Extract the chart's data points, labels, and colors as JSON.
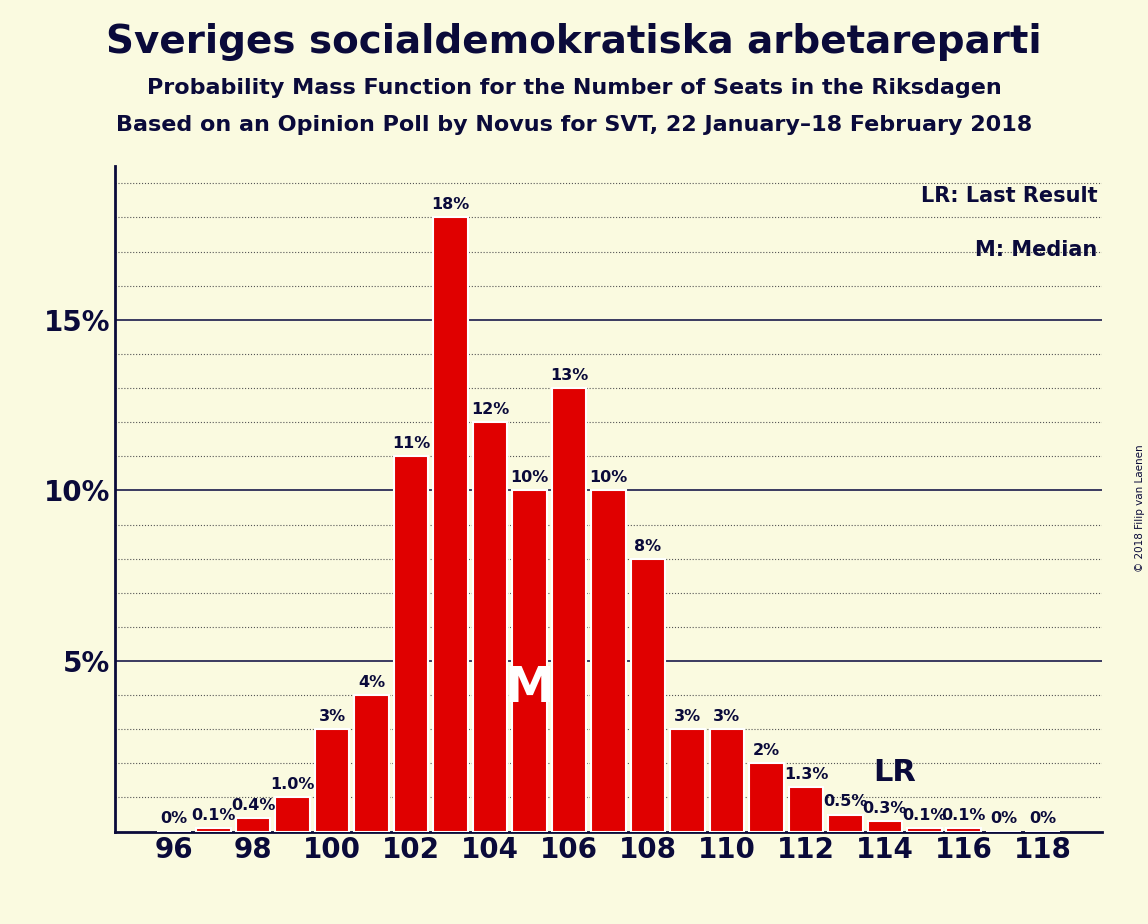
{
  "title": "Sveriges socialdemokratiska arbetareparti",
  "subtitle1": "Probability Mass Function for the Number of Seats in the Riksdagen",
  "subtitle2": "Based on an Opinion Poll by Novus for SVT, 22 January–18 February 2018",
  "copyright": "© 2018 Filip van Laenen",
  "legend_lr": "LR: Last Result",
  "legend_m": "M: Median",
  "seats": [
    96,
    97,
    98,
    99,
    100,
    101,
    102,
    103,
    104,
    105,
    106,
    107,
    108,
    109,
    110,
    111,
    112,
    113,
    114,
    115,
    116,
    117,
    118
  ],
  "probs": [
    0.0,
    0.1,
    0.4,
    1.0,
    3.0,
    4.0,
    11.0,
    18.0,
    12.0,
    10.0,
    13.0,
    10.0,
    8.0,
    3.0,
    3.0,
    2.0,
    1.3,
    0.5,
    0.3,
    0.1,
    0.1,
    0.0,
    0.0
  ],
  "bar_color": "#e00000",
  "bar_edge_color": "#ffffff",
  "background_color": "#fafae0",
  "text_color": "#0a0a3a",
  "median_seat": 105,
  "lr_seat": 113,
  "ylim_max": 19.5,
  "yticks_major": [
    0,
    5,
    10,
    15
  ],
  "yticks_minor_step": 1,
  "title_fontsize": 28,
  "subtitle_fontsize": 16,
  "axis_fontsize": 20,
  "label_fontsize": 11.5
}
